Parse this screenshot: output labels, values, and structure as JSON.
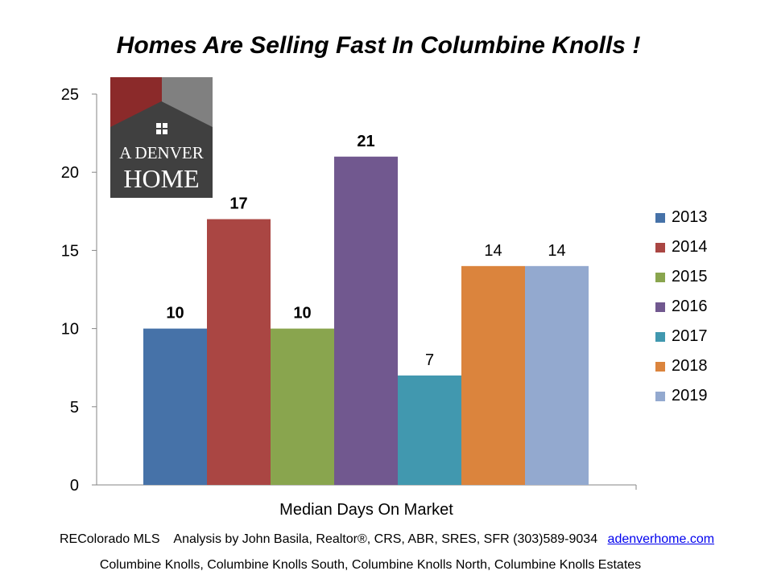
{
  "chart_data": {
    "type": "bar",
    "title": "Homes Are Selling Fast In Columbine Knolls !",
    "xlabel": "Median Days On Market",
    "ylabel": "",
    "ylim": [
      0,
      25
    ],
    "yticks": [
      0,
      5,
      10,
      15,
      20,
      25
    ],
    "grid": false,
    "legend_position": "right",
    "categories": [
      "Median Days On Market"
    ],
    "series": [
      {
        "name": "2013",
        "values": [
          10
        ],
        "color": "#4672a8",
        "label": "10",
        "label_bold": true
      },
      {
        "name": "2014",
        "values": [
          17
        ],
        "color": "#aa4643",
        "label": "17",
        "label_bold": true
      },
      {
        "name": "2015",
        "values": [
          10
        ],
        "color": "#89a54e",
        "label": "10",
        "label_bold": true
      },
      {
        "name": "2016",
        "values": [
          21
        ],
        "color": "#71588f",
        "label": "21",
        "label_bold": true
      },
      {
        "name": "2017",
        "values": [
          7
        ],
        "color": "#4198af",
        "label": "7",
        "label_bold": false
      },
      {
        "name": "2018",
        "values": [
          14
        ],
        "color": "#db843d",
        "label": "14",
        "label_bold": false
      },
      {
        "name": "2019",
        "values": [
          14
        ],
        "color": "#93a9cf",
        "label": "14",
        "label_bold": false
      }
    ]
  },
  "logo": {
    "line1": "A DENVER",
    "line2": "HOME",
    "colors": {
      "dark": "#404040",
      "red": "#8b2a2a",
      "gray": "#808080"
    },
    "icon": "house-window-icon"
  },
  "footer": {
    "source": "REColorado MLS",
    "credit": "Analysis by John Basila, Realtor®, CRS, ABR, SRES, SFR (303)589-9034",
    "link": "adenverhome.com",
    "areas": "Columbine Knolls, Columbine Knolls South, Columbine Knolls North, Columbine Knolls Estates"
  }
}
